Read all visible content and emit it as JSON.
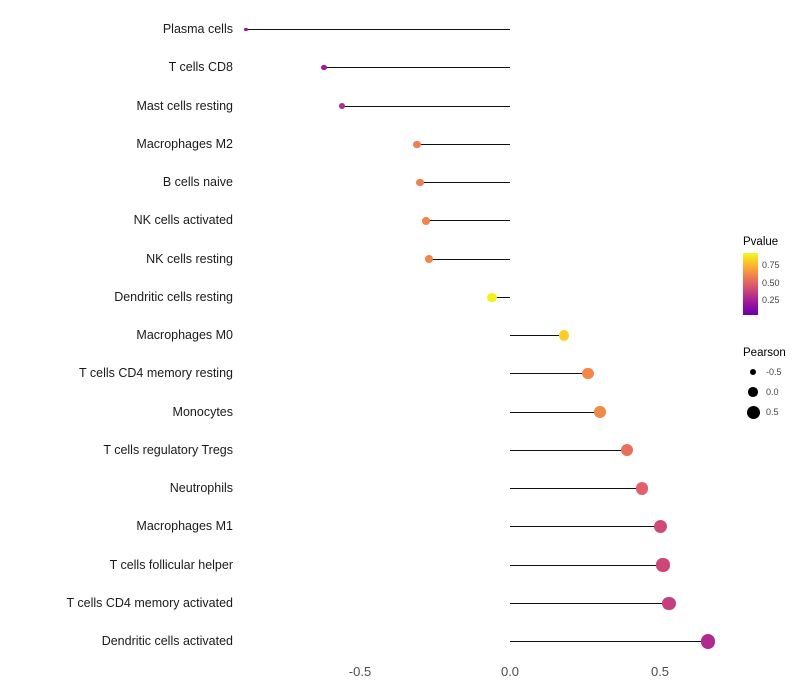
{
  "chart_data": {
    "type": "lollipop",
    "orientation": "horizontal",
    "title": "",
    "xlabel": "",
    "ylabel": "",
    "xlim": [
      -0.95,
      0.78
    ],
    "grid": false,
    "x_ticks": [
      "-0.5",
      "0.0",
      "0.5"
    ],
    "x_tick_values": [
      -0.5,
      0.0,
      0.5
    ],
    "categories": [
      "Plasma cells",
      "T cells CD8",
      "Mast cells resting",
      "Macrophages M2",
      "B cells naive",
      "NK cells activated",
      "NK cells resting",
      "Dendritic cells resting",
      "Macrophages M0",
      "T cells CD4 memory resting",
      "Monocytes",
      "T cells regulatory Tregs",
      "Neutrophils",
      "Macrophages M1",
      "T cells follicular helper",
      "T cells CD4 memory activated",
      "Dendritic cells activated"
    ],
    "series": [
      {
        "name": "Pearson",
        "values": [
          -0.88,
          -0.62,
          -0.56,
          -0.31,
          -0.3,
          -0.28,
          -0.27,
          -0.06,
          0.18,
          0.26,
          0.3,
          0.39,
          0.44,
          0.5,
          0.51,
          0.53,
          0.66
        ]
      },
      {
        "name": "Pvalue",
        "values": [
          0.05,
          0.1,
          0.18,
          0.52,
          0.52,
          0.55,
          0.55,
          0.88,
          0.72,
          0.58,
          0.55,
          0.42,
          0.36,
          0.28,
          0.27,
          0.24,
          0.16
        ]
      }
    ],
    "point_colors": [
      "#96109f",
      "#a01b9b",
      "#b52f8c",
      "#ef7e50",
      "#ef7e50",
      "#f1834b",
      "#f1854a",
      "#f4f020",
      "#fcce25",
      "#f48849",
      "#f18a49",
      "#e96f5a",
      "#e2606b",
      "#cf4a77",
      "#cc4778",
      "#c53f7e",
      "#b02a90"
    ],
    "stem_color": "#111111",
    "legend": {
      "position": "right",
      "color": {
        "title": "Pvalue",
        "ticks": [
          "0.75",
          "0.50",
          "0.25"
        ],
        "tick_values": [
          0.75,
          0.5,
          0.25
        ],
        "domain": [
          0.92,
          0.04
        ],
        "gradient": [
          "#f0f921",
          "#fdb42f",
          "#ed7953",
          "#cc4778",
          "#9c179e",
          "#6a00a8"
        ]
      },
      "size": {
        "title": "Pearson",
        "ticks": [
          "-0.5",
          "0.0",
          "0.5"
        ],
        "tick_values": [
          -0.5,
          0.0,
          0.5
        ],
        "dot_color": "#000000"
      }
    }
  }
}
